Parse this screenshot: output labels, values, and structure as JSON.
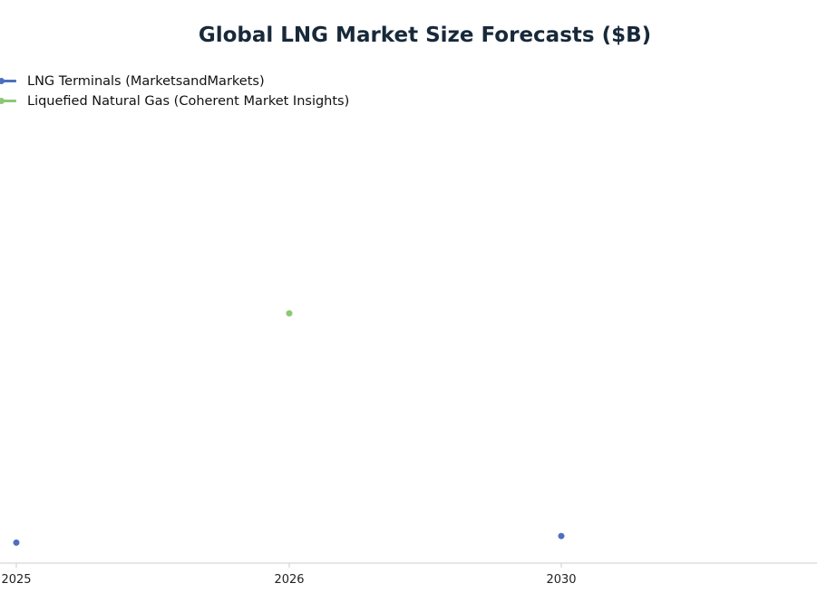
{
  "chart_data": {
    "type": "scatter",
    "title": "Global LNG Market Size Forecasts ($B)",
    "xlabel": "",
    "ylabel": "",
    "x_categories": [
      "2025",
      "2026",
      "2030"
    ],
    "ylim": [
      0,
      145
    ],
    "grid": false,
    "legend_placement": "top-left",
    "series": [
      {
        "name": "LNG Terminals (MarketsandMarkets)",
        "color": "#4e6fc0",
        "points": [
          {
            "x": "2025",
            "y": 6.8
          },
          {
            "x": "2030",
            "y": 9.0
          }
        ]
      },
      {
        "name": "Liquefied Natural Gas (Coherent Market Insights)",
        "color": "#8cc873",
        "points": [
          {
            "x": "2026",
            "y": 83.0
          }
        ]
      }
    ]
  }
}
